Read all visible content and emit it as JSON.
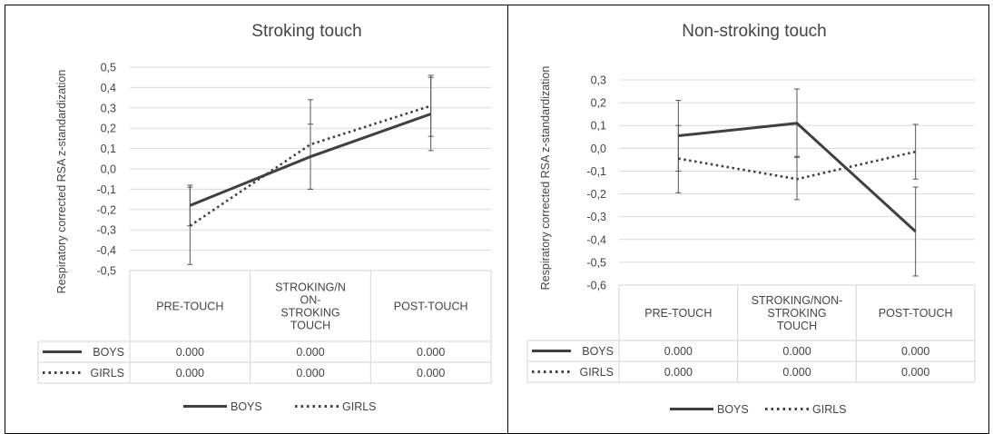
{
  "chart_data": [
    {
      "type": "line",
      "title": "Stroking touch",
      "ylabel": "Respiratory corrected RSA z-standardization",
      "xlabel": "",
      "categories": [
        "PRE-TOUCH",
        "STROKING/N ON- STROKING TOUCH",
        "POST-TOUCH"
      ],
      "category_lines": [
        [
          "PRE-TOUCH"
        ],
        [
          "STROKING/N",
          "ON-",
          "STROKING",
          "TOUCH"
        ],
        [
          "POST-TOUCH"
        ]
      ],
      "ylim": [
        -0.5,
        0.5
      ],
      "yticks": [
        "-0,5",
        "-0,4",
        "-0,3",
        "-0,2",
        "-0,1",
        "0,0",
        "0,1",
        "0,2",
        "0,3",
        "0,4",
        "0,5"
      ],
      "ytick_values": [
        -0.5,
        -0.4,
        -0.3,
        -0.2,
        -0.1,
        0.0,
        0.1,
        0.2,
        0.3,
        0.4,
        0.5
      ],
      "grid": true,
      "legend_position": "bottom",
      "series": [
        {
          "name": "BOYS",
          "style": "solid",
          "values": [
            -0.18,
            0.06,
            0.27
          ],
          "error_low": [
            -0.28,
            -0.1,
            0.09
          ],
          "error_high": [
            -0.09,
            0.22,
            0.45
          ],
          "table": [
            "0.000",
            "0.000",
            "0.000"
          ]
        },
        {
          "name": "GIRLS",
          "style": "dotted",
          "values": [
            -0.28,
            0.12,
            0.31
          ],
          "error_low": [
            -0.47,
            -0.1,
            0.16
          ],
          "error_high": [
            -0.08,
            0.34,
            0.46
          ],
          "table": [
            "0.000",
            "0.000",
            "0.000"
          ]
        }
      ]
    },
    {
      "type": "line",
      "title": "Non-stroking touch",
      "ylabel": "Respiratory corrected RSA z-standardization",
      "xlabel": "",
      "categories": [
        "PRE-TOUCH",
        "STROKING/NON- STROKING TOUCH",
        "POST-TOUCH"
      ],
      "category_lines": [
        [
          "PRE-TOUCH"
        ],
        [
          "STROKING/NON-",
          "STROKING",
          "TOUCH"
        ],
        [
          "POST-TOUCH"
        ]
      ],
      "ylim": [
        -0.6,
        0.3
      ],
      "yticks": [
        "-0,6",
        "-0,5",
        "-0,4",
        "-0,3",
        "-0,2",
        "-0,1",
        "0,0",
        "0,1",
        "0,2",
        "0,3"
      ],
      "ytick_values": [
        -0.6,
        -0.5,
        -0.4,
        -0.3,
        -0.2,
        -0.1,
        0.0,
        0.1,
        0.2,
        0.3
      ],
      "grid": true,
      "legend_position": "bottom",
      "series": [
        {
          "name": "BOYS",
          "style": "solid",
          "values": [
            0.055,
            0.11,
            -0.365
          ],
          "error_low": [
            -0.1,
            -0.04,
            -0.56
          ],
          "error_high": [
            0.21,
            0.26,
            -0.17
          ],
          "table": [
            "0.000",
            "0.000",
            "0.000"
          ]
        },
        {
          "name": "GIRLS",
          "style": "dotted",
          "values": [
            -0.045,
            -0.135,
            -0.015
          ],
          "error_low": [
            -0.195,
            -0.225,
            -0.135
          ],
          "error_high": [
            0.1,
            -0.035,
            0.105
          ],
          "table": [
            "0.000",
            "0.000",
            "0.000"
          ]
        }
      ]
    }
  ]
}
